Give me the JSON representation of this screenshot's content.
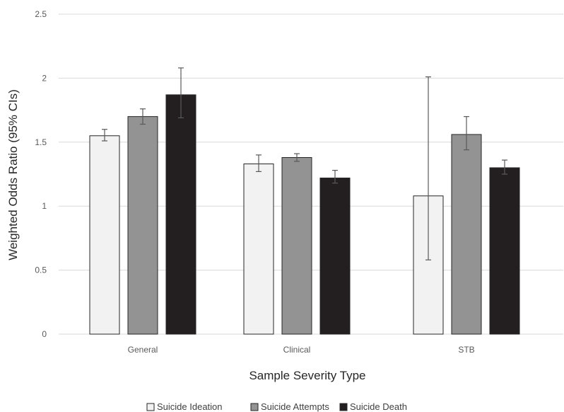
{
  "chart_data": {
    "type": "bar",
    "xlabel": "Sample Severity Type",
    "ylabel": "Weighted Odds Ratio (95% CIs)",
    "categories": [
      "General",
      "Clinical",
      "STB"
    ],
    "ylim": [
      0,
      2.5
    ],
    "yticks": [
      0,
      0.5,
      1,
      1.5,
      2,
      2.5
    ],
    "grid": true,
    "legend_position": "bottom",
    "series": [
      {
        "name": "Suicide Ideation",
        "color": "#f2f2f2",
        "values": [
          1.55,
          1.33,
          1.08
        ],
        "ci_low": [
          1.51,
          1.27,
          0.58
        ],
        "ci_high": [
          1.6,
          1.4,
          2.01
        ]
      },
      {
        "name": "Suicide Attempts",
        "color": "#939393",
        "values": [
          1.7,
          1.38,
          1.56
        ],
        "ci_low": [
          1.64,
          1.35,
          1.44
        ],
        "ci_high": [
          1.76,
          1.41,
          1.7
        ]
      },
      {
        "name": "Suicide Death",
        "color": "#231f20",
        "values": [
          1.87,
          1.22,
          1.3
        ],
        "ci_low": [
          1.69,
          1.18,
          1.25
        ],
        "ci_high": [
          2.08,
          1.28,
          1.36
        ]
      }
    ]
  }
}
